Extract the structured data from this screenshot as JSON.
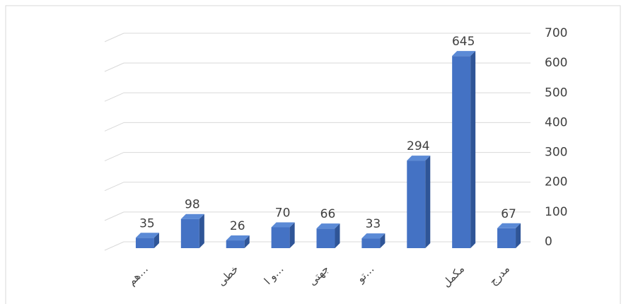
{
  "chart_data": {
    "type": "bar",
    "categories": [
      "هم…",
      null,
      "خطی",
      "و ا…",
      "جهتی",
      "تو…",
      null,
      "مکمل",
      "مدرج"
    ],
    "values": [
      35,
      98,
      26,
      70,
      66,
      33,
      294,
      645,
      67
    ],
    "color": "#4472c4",
    "ylim": [
      0,
      700
    ],
    "yticks": [
      0,
      100,
      200,
      300,
      400,
      500,
      600,
      700
    ],
    "grid": true
  }
}
